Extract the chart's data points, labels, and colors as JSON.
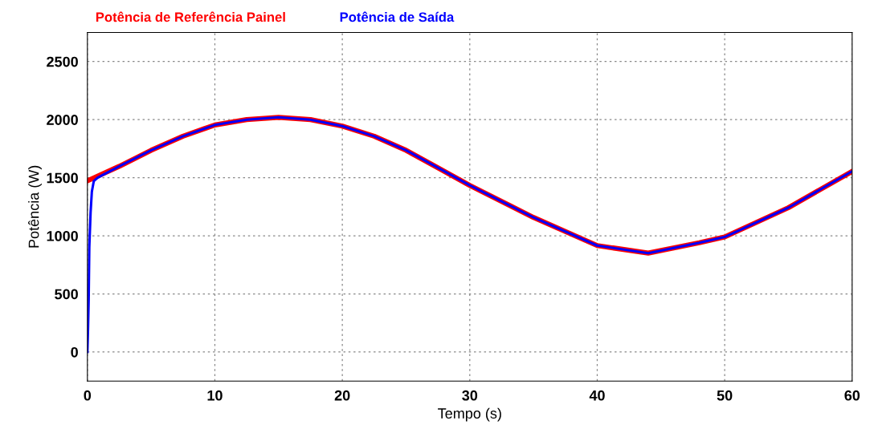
{
  "chart_data": {
    "type": "line",
    "xlabel": "Tempo (s)",
    "ylabel": "Potência (W)",
    "xlim": [
      0,
      60
    ],
    "xticks": [
      0,
      10,
      20,
      30,
      40,
      50,
      60
    ],
    "ylim": [
      -250,
      2750
    ],
    "yticks": [
      0,
      500,
      1000,
      1500,
      2000,
      2500
    ],
    "grid": true,
    "legend": "top left",
    "line_style": "solid",
    "marker": "none",
    "series": [
      {
        "name": "Potência de Referência Painel",
        "color": "#ff0000",
        "x": [
          0,
          2.5,
          5,
          7.5,
          10,
          12.5,
          15,
          17.5,
          20,
          22.5,
          25,
          27.5,
          30,
          35,
          40,
          44,
          48,
          50,
          55,
          60
        ],
        "values": [
          1473,
          1598,
          1736,
          1857,
          1954,
          2000,
          2020,
          2000,
          1944,
          1857,
          1736,
          1586,
          1434,
          1158,
          916,
          851,
          940,
          990,
          1242,
          1555
        ]
      },
      {
        "name": "Potência de Saída",
        "color": "#0000ff",
        "x": [
          0,
          0.05,
          0.1,
          0.15,
          0.25,
          0.35,
          0.5,
          0.8,
          2.5,
          5,
          7.5,
          10,
          12.5,
          15,
          17.5,
          20,
          22.5,
          25,
          27.5,
          30,
          35,
          40,
          44,
          48,
          50,
          55,
          60
        ],
        "values": [
          0,
          200,
          450,
          900,
          1200,
          1380,
          1470,
          1500,
          1598,
          1736,
          1857,
          1954,
          2000,
          2020,
          2000,
          1944,
          1857,
          1736,
          1586,
          1434,
          1158,
          916,
          851,
          940,
          990,
          1242,
          1555
        ]
      }
    ]
  }
}
